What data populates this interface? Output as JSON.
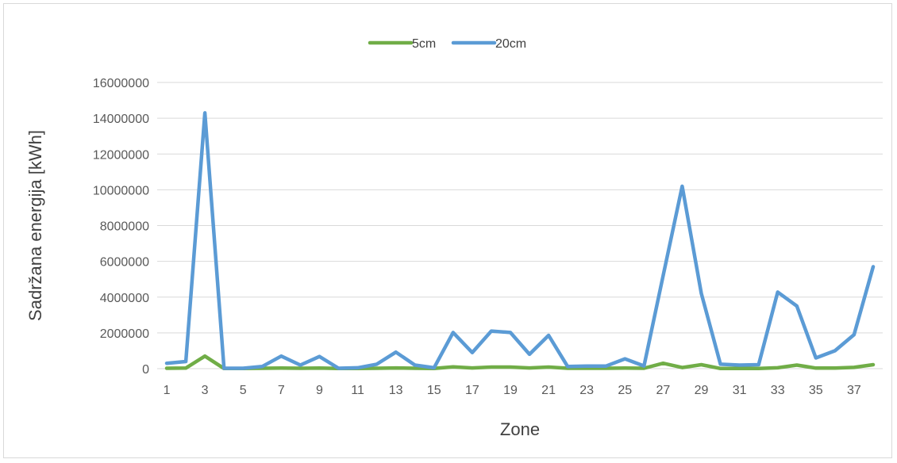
{
  "chart_data": {
    "type": "line",
    "xlabel": "Zone",
    "ylabel": "Sadržana energija [kWh]",
    "x": [
      1,
      2,
      3,
      4,
      5,
      6,
      7,
      8,
      9,
      10,
      11,
      12,
      13,
      14,
      15,
      16,
      17,
      18,
      19,
      20,
      21,
      22,
      23,
      24,
      25,
      26,
      27,
      28,
      29,
      30,
      31,
      32,
      33,
      34,
      35,
      36,
      37,
      38
    ],
    "x_tick_labels": [
      "1",
      "3",
      "5",
      "7",
      "9",
      "11",
      "13",
      "15",
      "17",
      "19",
      "21",
      "23",
      "25",
      "27",
      "29",
      "31",
      "33",
      "35",
      "37"
    ],
    "ylim": [
      0,
      16000000
    ],
    "y_tick_labels": [
      "0",
      "2000000",
      "4000000",
      "6000000",
      "8000000",
      "10000000",
      "12000000",
      "14000000",
      "16000000"
    ],
    "grid": true,
    "legend_position": "top",
    "series": [
      {
        "name": "5cm",
        "color": "#70ad47",
        "values": [
          20000,
          30000,
          700000,
          10000,
          10000,
          20000,
          30000,
          20000,
          30000,
          10000,
          10000,
          20000,
          40000,
          20000,
          10000,
          100000,
          40000,
          90000,
          90000,
          40000,
          90000,
          20000,
          20000,
          20000,
          30000,
          20000,
          300000,
          60000,
          220000,
          10000,
          10000,
          10000,
          50000,
          200000,
          30000,
          30000,
          70000,
          220000
        ]
      },
      {
        "name": "20cm",
        "color": "#5b9bd5",
        "values": [
          300000,
          400000,
          14300000,
          20000,
          20000,
          120000,
          700000,
          200000,
          680000,
          20000,
          50000,
          250000,
          920000,
          200000,
          50000,
          2020000,
          900000,
          2100000,
          2020000,
          800000,
          1860000,
          120000,
          140000,
          140000,
          550000,
          150000,
          5200000,
          10200000,
          4200000,
          250000,
          200000,
          220000,
          4280000,
          3500000,
          600000,
          1000000,
          1900000,
          5700000
        ]
      }
    ]
  }
}
